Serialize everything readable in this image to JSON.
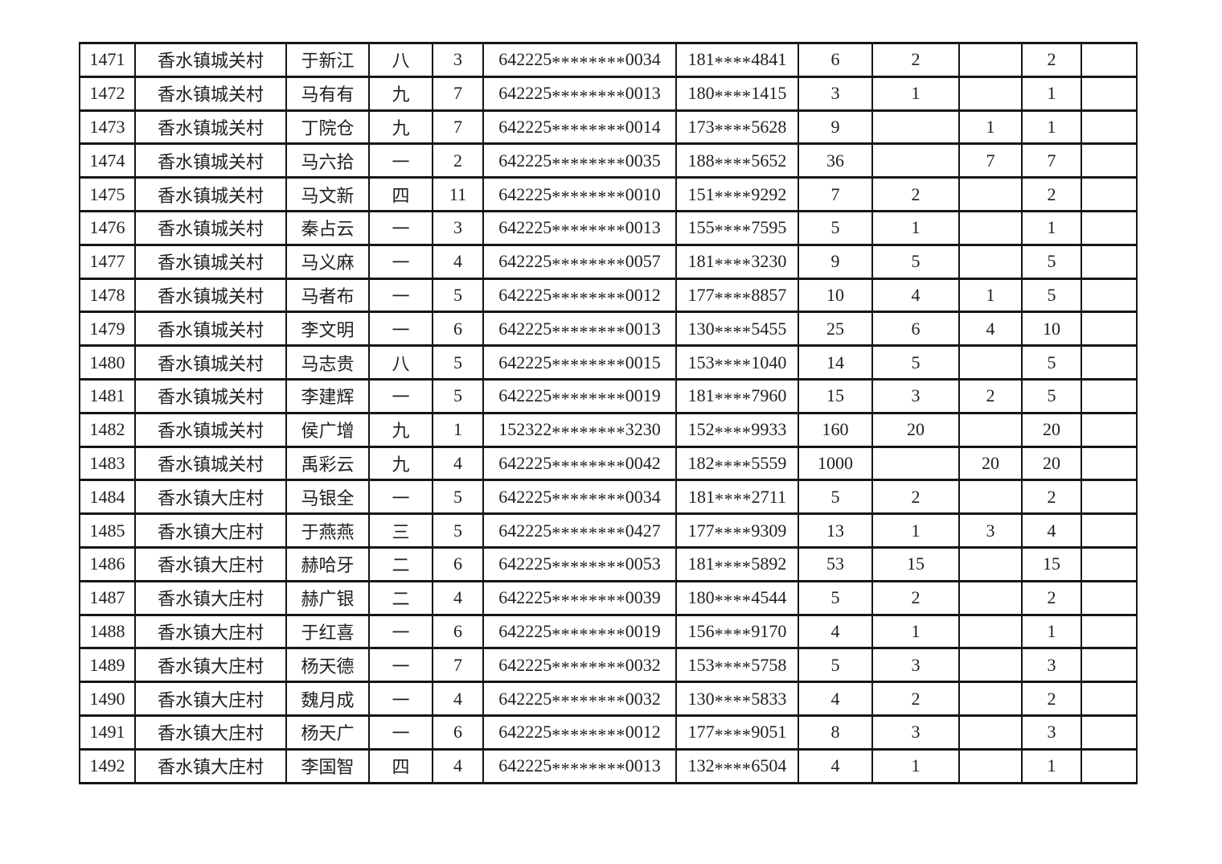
{
  "page": {
    "background_color": "#ffffff"
  },
  "table": {
    "border_color": "#161616",
    "text_color": "#1f1f1f",
    "background_color": "#ffffff",
    "first_row_number": "1471",
    "last_row_number": "1492",
    "rows": [
      [
        "1471",
        "香水镇城关村",
        "于新江",
        "八",
        "3",
        "642225********0034",
        "181****4841",
        "6",
        "2",
        "",
        "2",
        ""
      ],
      [
        "1472",
        "香水镇城关村",
        "马有有",
        "九",
        "7",
        "642225********0013",
        "180****1415",
        "3",
        "1",
        "",
        "1",
        ""
      ],
      [
        "1473",
        "香水镇城关村",
        "丁院仓",
        "九",
        "7",
        "642225********0014",
        "173****5628",
        "9",
        "",
        "1",
        "1",
        ""
      ],
      [
        "1474",
        "香水镇城关村",
        "马六拾",
        "一",
        "2",
        "642225********0035",
        "188****5652",
        "36",
        "",
        "7",
        "7",
        ""
      ],
      [
        "1475",
        "香水镇城关村",
        "马文新",
        "四",
        "11",
        "642225********0010",
        "151****9292",
        "7",
        "2",
        "",
        "2",
        ""
      ],
      [
        "1476",
        "香水镇城关村",
        "秦占云",
        "一",
        "3",
        "642225********0013",
        "155****7595",
        "5",
        "1",
        "",
        "1",
        ""
      ],
      [
        "1477",
        "香水镇城关村",
        "马义麻",
        "一",
        "4",
        "642225********0057",
        "181****3230",
        "9",
        "5",
        "",
        "5",
        ""
      ],
      [
        "1478",
        "香水镇城关村",
        "马者布",
        "一",
        "5",
        "642225********0012",
        "177****8857",
        "10",
        "4",
        "1",
        "5",
        ""
      ],
      [
        "1479",
        "香水镇城关村",
        "李文明",
        "一",
        "6",
        "642225********0013",
        "130****5455",
        "25",
        "6",
        "4",
        "10",
        ""
      ],
      [
        "1480",
        "香水镇城关村",
        "马志贵",
        "八",
        "5",
        "642225********0015",
        "153****1040",
        "14",
        "5",
        "",
        "5",
        ""
      ],
      [
        "1481",
        "香水镇城关村",
        "李建辉",
        "一",
        "5",
        "642225********0019",
        "181****7960",
        "15",
        "3",
        "2",
        "5",
        ""
      ],
      [
        "1482",
        "香水镇城关村",
        "侯广增",
        "九",
        "1",
        "152322********3230",
        "152****9933",
        "160",
        "20",
        "",
        "20",
        ""
      ],
      [
        "1483",
        "香水镇城关村",
        "禹彩云",
        "九",
        "4",
        "642225********0042",
        "182****5559",
        "1000",
        "",
        "20",
        "20",
        ""
      ],
      [
        "1484",
        "香水镇大庄村",
        "马银全",
        "一",
        "5",
        "642225********0034",
        "181****2711",
        "5",
        "2",
        "",
        "2",
        ""
      ],
      [
        "1485",
        "香水镇大庄村",
        "于燕燕",
        "三",
        "5",
        "642225********0427",
        "177****9309",
        "13",
        "1",
        "3",
        "4",
        ""
      ],
      [
        "1486",
        "香水镇大庄村",
        "赫哈牙",
        "二",
        "6",
        "642225********0053",
        "181****5892",
        "53",
        "15",
        "",
        "15",
        ""
      ],
      [
        "1487",
        "香水镇大庄村",
        "赫广银",
        "二",
        "4",
        "642225********0039",
        "180****4544",
        "5",
        "2",
        "",
        "2",
        ""
      ],
      [
        "1488",
        "香水镇大庄村",
        "于红喜",
        "一",
        "6",
        "642225********0019",
        "156****9170",
        "4",
        "1",
        "",
        "1",
        ""
      ],
      [
        "1489",
        "香水镇大庄村",
        "杨天德",
        "一",
        "7",
        "642225********0032",
        "153****5758",
        "5",
        "3",
        "",
        "3",
        ""
      ],
      [
        "1490",
        "香水镇大庄村",
        "魏月成",
        "一",
        "4",
        "642225********0032",
        "130****5833",
        "4",
        "2",
        "",
        "2",
        ""
      ],
      [
        "1491",
        "香水镇大庄村",
        "杨天广",
        "一",
        "6",
        "642225********0012",
        "177****9051",
        "8",
        "3",
        "",
        "3",
        ""
      ],
      [
        "1492",
        "香水镇大庄村",
        "李国智",
        "四",
        "4",
        "642225********0013",
        "132****6504",
        "4",
        "1",
        "",
        "1",
        ""
      ]
    ]
  }
}
